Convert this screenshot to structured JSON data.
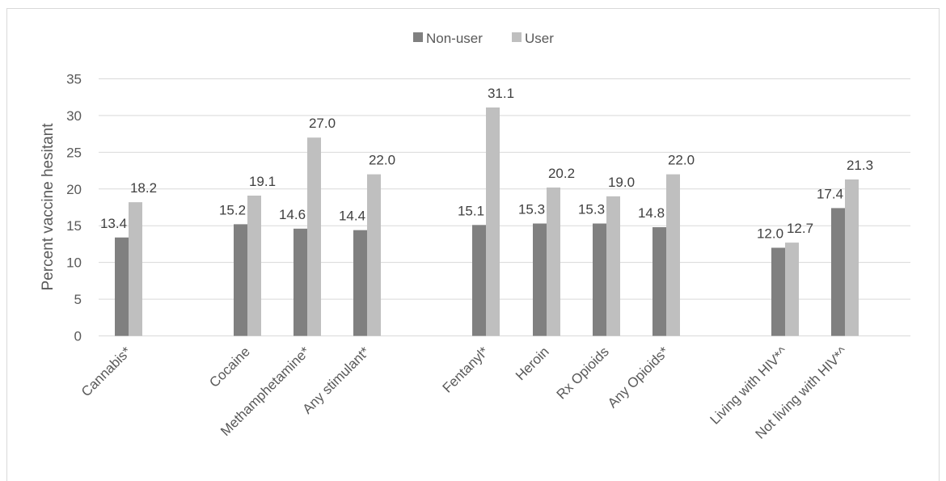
{
  "chart_data": {
    "type": "bar",
    "title": "",
    "xlabel": "",
    "ylabel": "Percent  vaccine hesitant",
    "ylim": [
      0,
      35
    ],
    "yticks": [
      "0",
      "5",
      "10",
      "15",
      "20",
      "25",
      "30",
      "35"
    ],
    "grid": true,
    "legend_position": "top",
    "categories": [
      "Cannabis*",
      "Cocaine",
      "Methamphetamine*",
      "Any stimulant*",
      "Fentanyl*",
      "Heroin",
      "Rx Opioids",
      "Any Opioids*",
      "Living with HIV*^",
      "Not living with HIV*^"
    ],
    "series": [
      {
        "name": "Non-user",
        "color": "#808080",
        "values": [
          13.4,
          15.2,
          14.6,
          14.4,
          15.1,
          15.3,
          15.3,
          14.8,
          12.0,
          17.4
        ],
        "labels": [
          "13.4",
          "15.2",
          "14.6",
          "14.4",
          "15.1",
          "15.3",
          "15.3",
          "14.8",
          "12.0",
          "17.4"
        ]
      },
      {
        "name": "User",
        "color": "#bfbfbf",
        "values": [
          18.2,
          19.1,
          27.0,
          22.0,
          31.1,
          20.2,
          19.0,
          22.0,
          12.7,
          21.3
        ],
        "labels": [
          "18.2",
          "19.1",
          "27.0",
          "22.0",
          "31.1",
          "20.2",
          "19.0",
          "22.0",
          "12.7",
          "21.3"
        ]
      }
    ]
  }
}
